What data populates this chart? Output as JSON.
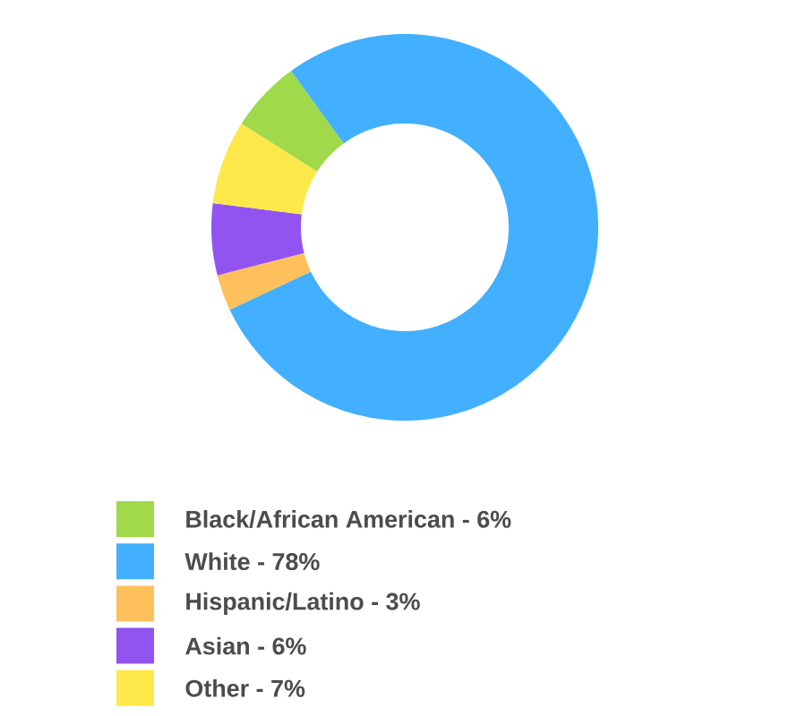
{
  "chart_data": {
    "type": "donut",
    "categories": [
      "Black/African American - 6%",
      "White - 78%",
      "Hispanic/Latino - 3%",
      "Asian - 6%",
      "Other - 7%"
    ],
    "values": [
      6,
      78,
      3,
      6,
      7
    ],
    "colors": [
      "#a0d94a",
      "#42b0ff",
      "#fdc05a",
      "#9254f0",
      "#fde84a"
    ],
    "legend": "bottom"
  }
}
